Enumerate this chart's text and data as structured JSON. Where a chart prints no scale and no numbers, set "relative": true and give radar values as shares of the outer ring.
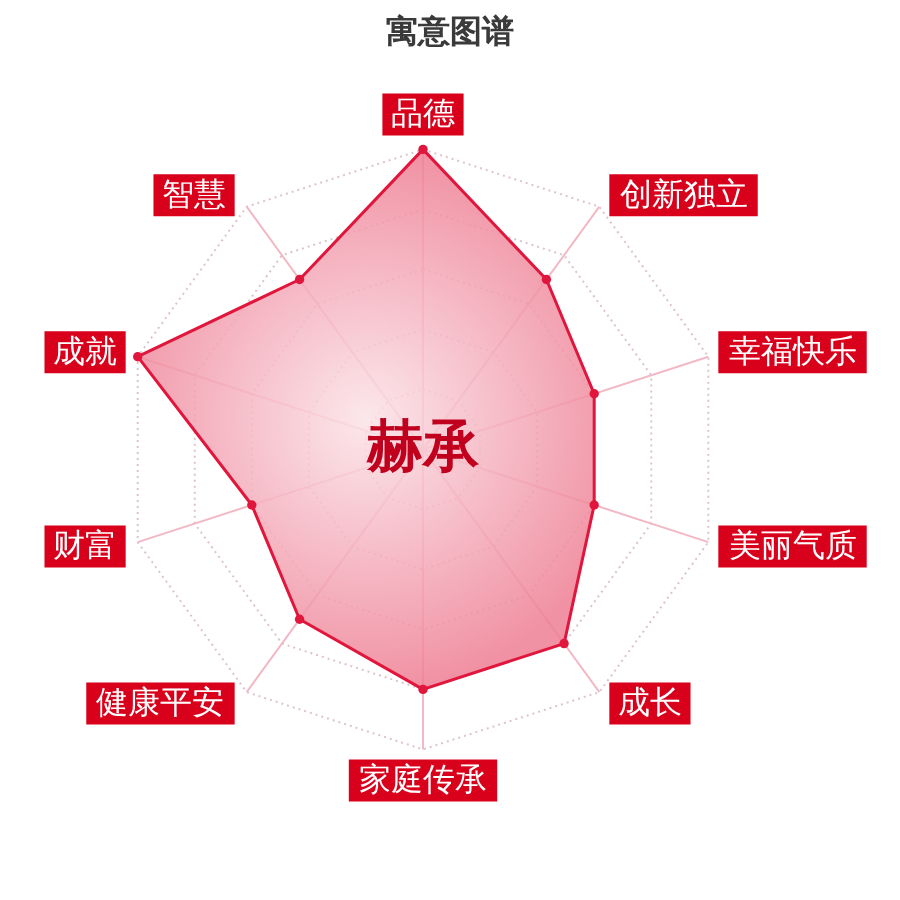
{
  "chart_data": {
    "type": "radar",
    "title": "寓意图谱",
    "categories": [
      "品德",
      "创新独立",
      "幸福快乐",
      "美丽气质",
      "成长",
      "家庭传承",
      "健康平安",
      "财富",
      "成就",
      "智慧"
    ],
    "series": [
      {
        "color": "#e0163c",
        "values": [
          1.0,
          0.7,
          0.6,
          0.6,
          0.8,
          0.8,
          0.7,
          0.6,
          1.0,
          0.7
        ]
      }
    ],
    "relative": true,
    "grid": true,
    "marker": "circle",
    "annotations": [
      "赫承"
    ]
  }
}
